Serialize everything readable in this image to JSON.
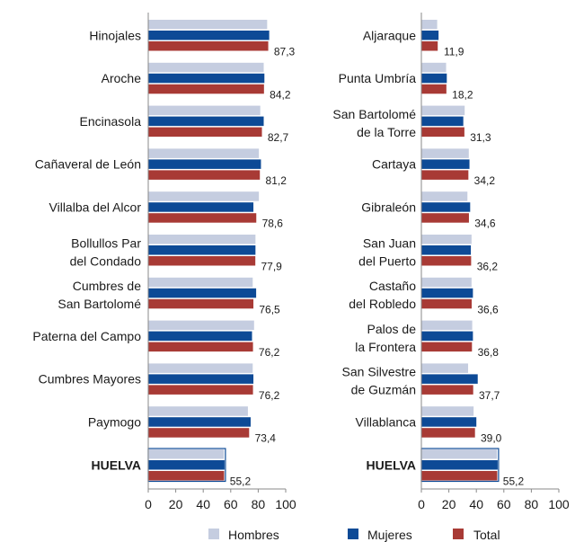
{
  "colors": {
    "hombres": "#c5cde0",
    "mujeres": "#0d4a96",
    "total": "#a83a35",
    "axis": "#8a8a8a",
    "highlight_border": "#0d4a96"
  },
  "legend": [
    {
      "key": "hombres",
      "label": "Hombres"
    },
    {
      "key": "mujeres",
      "label": "Mujeres"
    },
    {
      "key": "total",
      "label": "Total"
    }
  ],
  "chart_data": [
    {
      "type": "bar",
      "orientation": "horizontal",
      "xlim": [
        0,
        100
      ],
      "xticks": [
        "0",
        "20",
        "40",
        "60",
        "80",
        "100"
      ],
      "categories": [
        [
          "Hinojales"
        ],
        [
          "Aroche"
        ],
        [
          "Encinasola"
        ],
        [
          "Cañaveral de León"
        ],
        [
          "Villalba del Alcor"
        ],
        [
          "Bollullos Par",
          "del Condado"
        ],
        [
          "Cumbres de",
          "San Bartolomé"
        ],
        [
          "Paterna del Campo"
        ],
        [
          "Cumbres Mayores"
        ],
        [
          "Paymogo"
        ],
        [
          "HUELVA"
        ]
      ],
      "highlight_category": 10,
      "series": [
        {
          "name": "Hombres",
          "key": "hombres",
          "values": [
            86.5,
            84.0,
            81.5,
            80.5,
            80.5,
            78.0,
            76.0,
            77.0,
            76.0,
            72.5,
            55.0
          ]
        },
        {
          "name": "Mujeres",
          "key": "mujeres",
          "values": [
            88.0,
            84.5,
            84.0,
            82.0,
            76.5,
            78.0,
            78.5,
            75.5,
            76.5,
            74.5,
            55.5
          ]
        },
        {
          "name": "Total",
          "key": "total",
          "values": [
            87.3,
            84.2,
            82.7,
            81.2,
            78.6,
            77.9,
            76.5,
            76.2,
            76.2,
            73.4,
            55.2
          ]
        }
      ],
      "value_labels": [
        "87,3",
        "84,2",
        "82,7",
        "81,2",
        "78,6",
        "77,9",
        "76,5",
        "76,2",
        "76,2",
        "73,4",
        "55,2"
      ]
    },
    {
      "type": "bar",
      "orientation": "horizontal",
      "xlim": [
        0,
        100
      ],
      "xticks": [
        "0",
        "20",
        "40",
        "60",
        "80",
        "100"
      ],
      "categories": [
        [
          "Aljaraque"
        ],
        [
          "Punta Umbría"
        ],
        [
          "San Bartolomé",
          "de la Torre"
        ],
        [
          "Cartaya"
        ],
        [
          "Gibraleón"
        ],
        [
          "San Juan",
          "del Puerto"
        ],
        [
          "Castaño",
          "del Robledo"
        ],
        [
          "Palos de",
          "la Frontera"
        ],
        [
          "San Silvestre",
          "de Guzmán"
        ],
        [
          "Villablanca"
        ],
        [
          "HUELVA"
        ]
      ],
      "highlight_category": 10,
      "series": [
        {
          "name": "Hombres",
          "key": "hombres",
          "values": [
            11.5,
            18.0,
            31.5,
            34.5,
            33.5,
            36.5,
            36.5,
            37.0,
            34.0,
            38.0,
            55.0
          ]
        },
        {
          "name": "Mujeres",
          "key": "mujeres",
          "values": [
            12.5,
            18.5,
            30.5,
            35.0,
            35.5,
            36.0,
            37.5,
            37.5,
            41.0,
            40.0,
            55.5
          ]
        },
        {
          "name": "Total",
          "key": "total",
          "values": [
            11.9,
            18.2,
            31.3,
            34.2,
            34.6,
            36.2,
            36.6,
            36.8,
            37.7,
            39.0,
            55.2
          ]
        }
      ],
      "value_labels": [
        "11,9",
        "18,2",
        "31,3",
        "34,2",
        "34,6",
        "36,2",
        "36,6",
        "36,8",
        "37,7",
        "39,0",
        "55,2"
      ]
    }
  ]
}
